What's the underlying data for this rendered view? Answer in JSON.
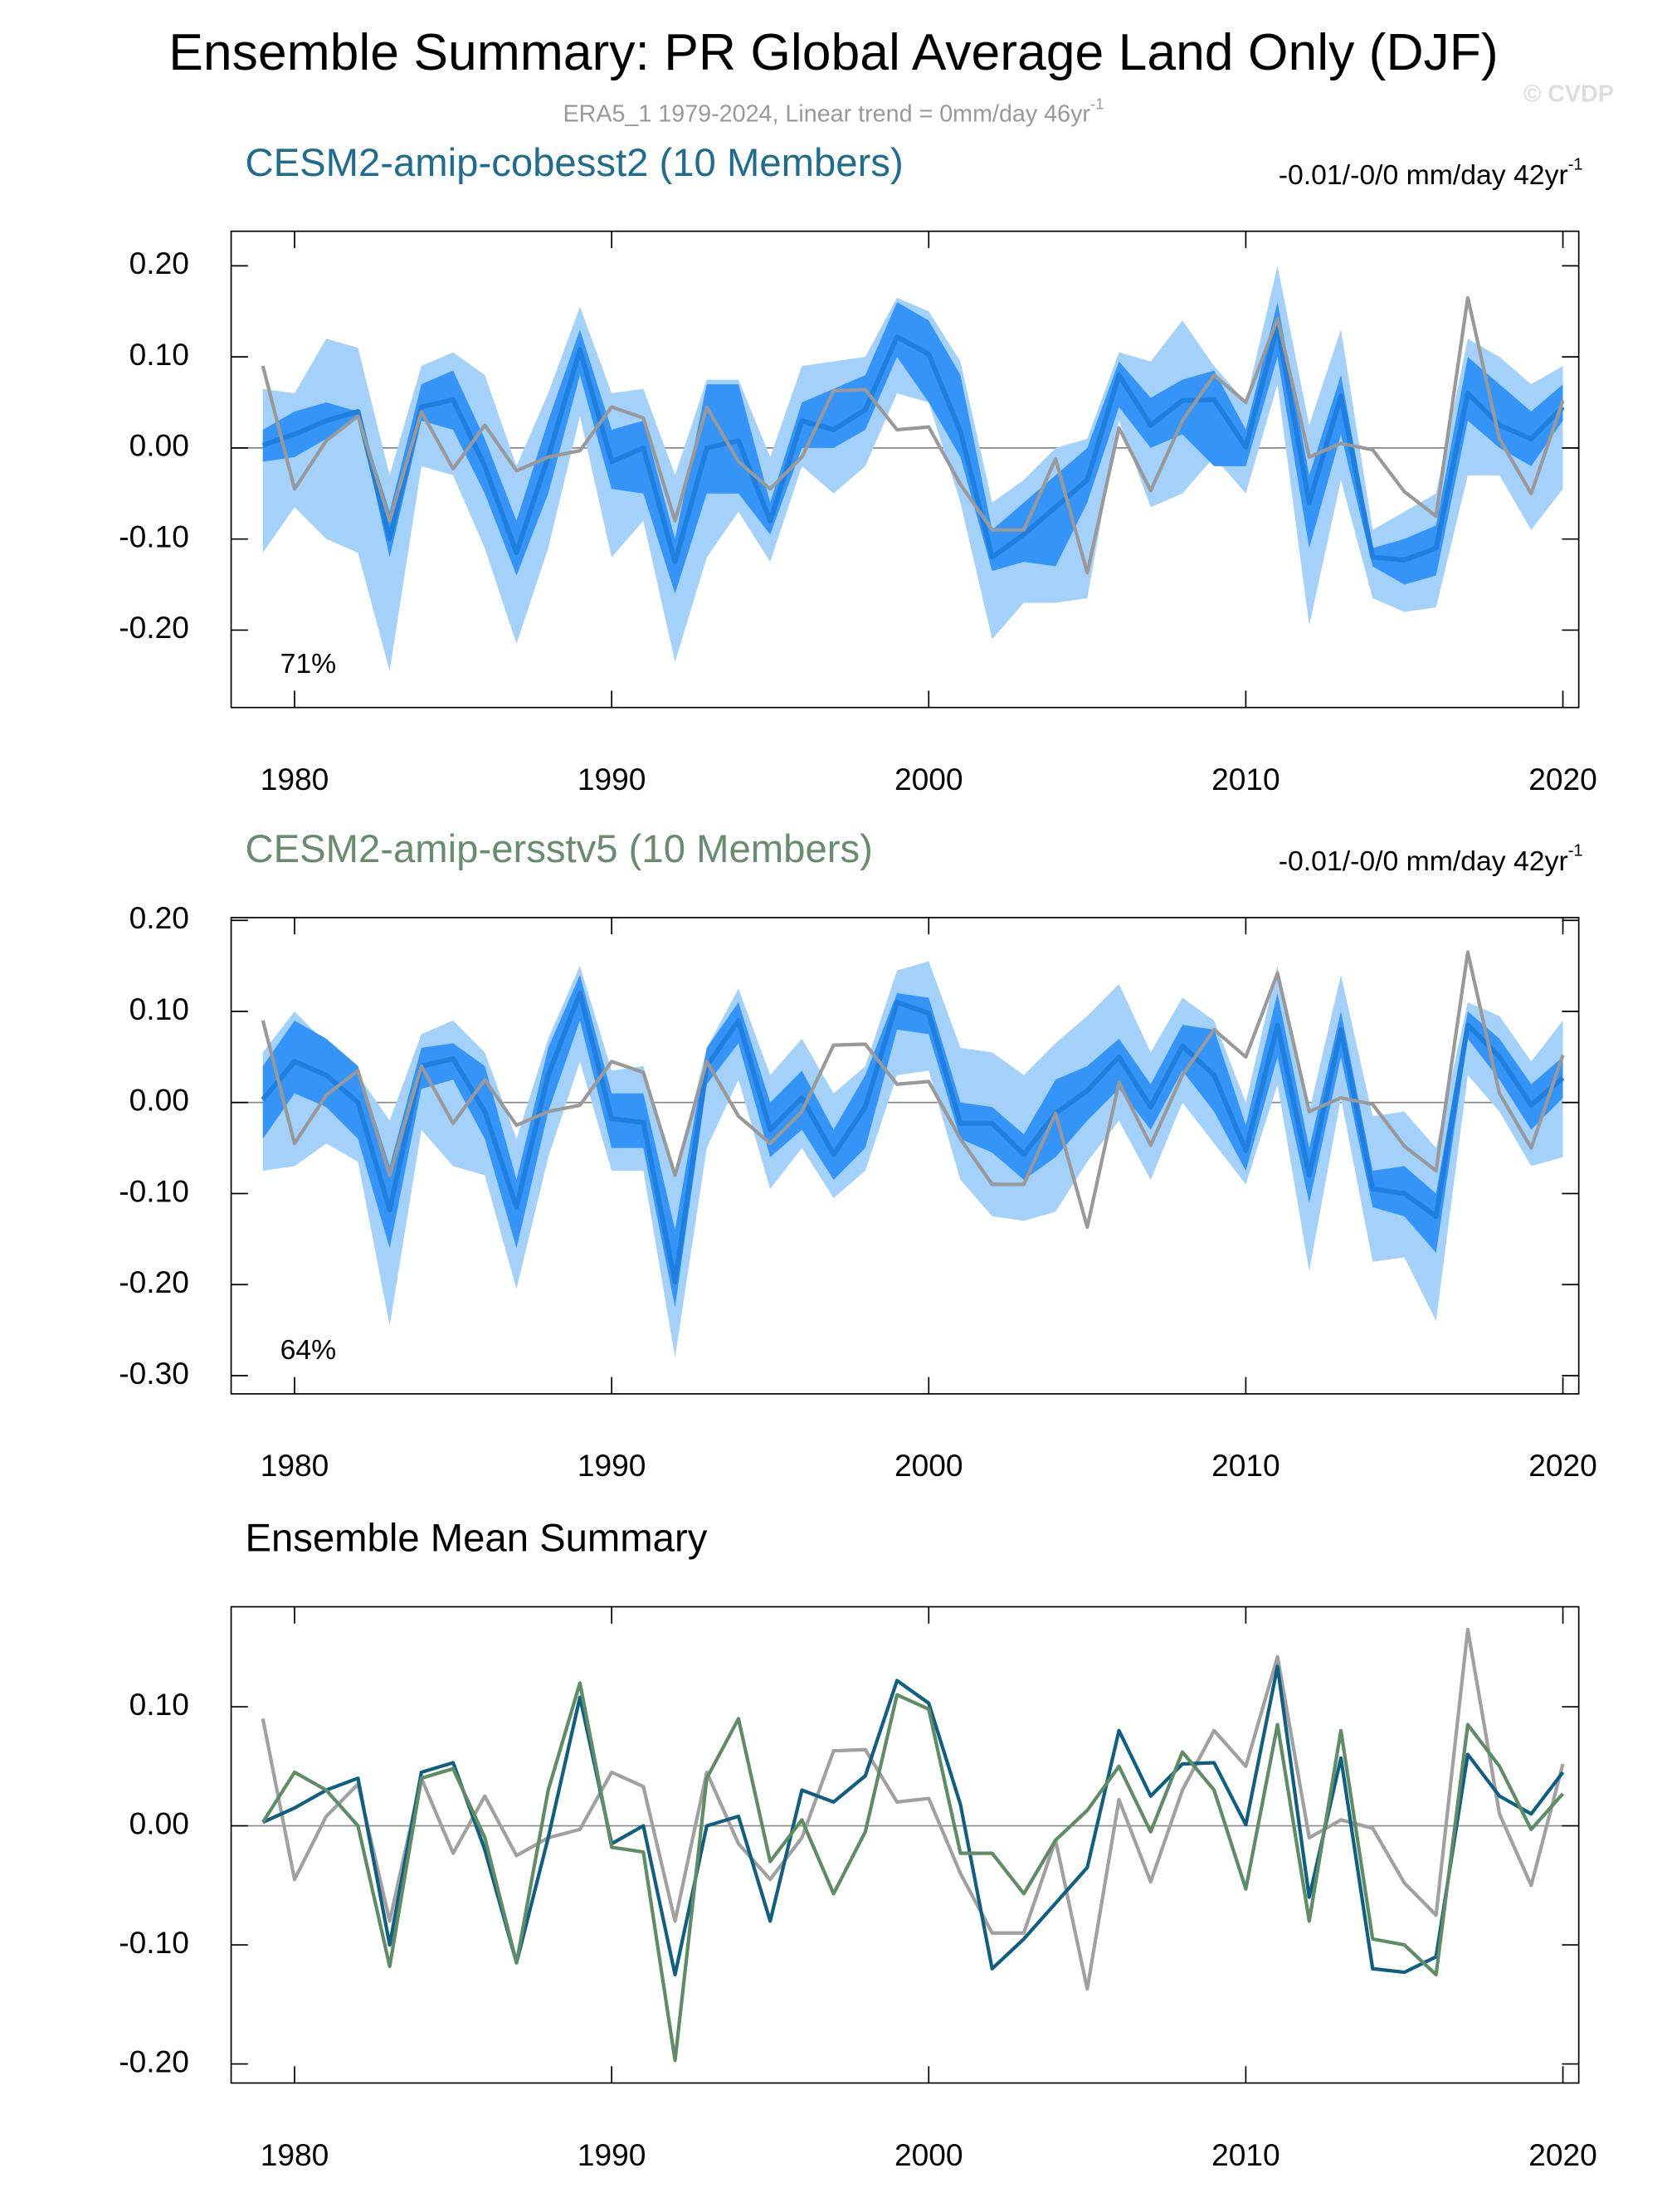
{
  "title": "Ensemble Summary: PR Global Average Land Only (DJF)",
  "subtitle": "ERA5_1 1979-2024, Linear trend = 0mm/day 46yr",
  "subtitle_superscript": "-1",
  "watermark": "© CVDP",
  "chart_data": [
    {
      "type": "band_line",
      "title": "CESM2-amip-cobesst2 (10 Members)",
      "title_color": "#1f6c91",
      "trend_label": "-0.01/-0/0 mm/day 42yr",
      "trend_superscript": "-1",
      "percent_label": "71%",
      "x": [
        1979,
        1980,
        1981,
        1982,
        1983,
        1984,
        1985,
        1986,
        1987,
        1988,
        1989,
        1990,
        1991,
        1992,
        1993,
        1994,
        1995,
        1996,
        1997,
        1998,
        1999,
        2000,
        2001,
        2002,
        2003,
        2004,
        2005,
        2006,
        2007,
        2008,
        2009,
        2010,
        2011,
        2012,
        2013,
        2014,
        2015,
        2016,
        2017,
        2018,
        2019,
        2020
      ],
      "xlim": [
        1978.0,
        2020.5
      ],
      "xticks": [
        1980,
        1990,
        2000,
        2010,
        2020
      ],
      "ylim": [
        -0.285,
        0.238
      ],
      "yticks": [
        {
          "value": 0.2,
          "label": "0.20"
        },
        {
          "value": 0.1,
          "label": "0.10"
        },
        {
          "value": 0,
          "label": "0.00"
        },
        {
          "value": -0.1,
          "label": "-0.10"
        },
        {
          "value": -0.2,
          "label": "-0.20"
        }
      ],
      "outer_band": {
        "color": "#a3d1fa",
        "high": [
          0.065,
          0.06,
          0.12,
          0.11,
          -0.03,
          0.09,
          0.105,
          0.08,
          -0.02,
          0.06,
          0.155,
          0.06,
          0.065,
          -0.03,
          0.075,
          0.075,
          -0.01,
          0.09,
          0.095,
          0.1,
          0.165,
          0.15,
          0.095,
          -0.06,
          -0.035,
          0.0,
          0.01,
          0.105,
          0.095,
          0.14,
          0.09,
          0.05,
          0.2,
          0.025,
          0.13,
          -0.09,
          -0.07,
          -0.05,
          0.12,
          0.1,
          0.07,
          0.09
        ],
        "low": [
          -0.115,
          -0.065,
          -0.1,
          -0.115,
          -0.245,
          -0.02,
          -0.03,
          -0.11,
          -0.215,
          -0.11,
          0.035,
          -0.12,
          -0.08,
          -0.235,
          -0.12,
          -0.07,
          -0.125,
          -0.02,
          -0.05,
          -0.02,
          0.06,
          0.05,
          -0.06,
          -0.21,
          -0.17,
          -0.17,
          -0.165,
          0.03,
          -0.065,
          -0.05,
          -0.01,
          -0.05,
          0.07,
          -0.195,
          -0.035,
          -0.165,
          -0.18,
          -0.175,
          -0.03,
          -0.03,
          -0.09,
          -0.045
        ]
      },
      "inner_band": {
        "color": "#3494f7",
        "high": [
          0.02,
          0.04,
          0.05,
          0.04,
          -0.07,
          0.07,
          0.085,
          0.01,
          -0.08,
          0.03,
          0.13,
          0.02,
          0.03,
          -0.1,
          0.07,
          0.07,
          -0.06,
          0.05,
          0.065,
          0.08,
          0.16,
          0.14,
          0.08,
          -0.09,
          -0.06,
          -0.03,
          0.0,
          0.095,
          0.055,
          0.075,
          0.085,
          0.02,
          0.16,
          -0.03,
          0.08,
          -0.11,
          -0.1,
          -0.085,
          0.1,
          0.07,
          0.04,
          0.07
        ],
        "low": [
          -0.015,
          -0.01,
          0.01,
          0.035,
          -0.12,
          0.03,
          0.02,
          -0.05,
          -0.14,
          -0.05,
          0.08,
          -0.045,
          -0.05,
          -0.16,
          -0.05,
          -0.05,
          -0.095,
          0.0,
          0.0,
          0.02,
          0.1,
          0.05,
          -0.01,
          -0.135,
          -0.125,
          -0.13,
          -0.06,
          0.045,
          0.0,
          0.015,
          -0.02,
          -0.02,
          0.1,
          -0.11,
          0.015,
          -0.13,
          -0.15,
          -0.14,
          0.03,
          0.0,
          -0.02,
          0.03
        ]
      },
      "ensemble_mean": {
        "color": "#1e7fdf",
        "values": [
          0.003,
          0.015,
          0.03,
          0.04,
          -0.1,
          0.045,
          0.053,
          -0.02,
          -0.115,
          -0.01,
          0.108,
          -0.015,
          0.0,
          -0.125,
          0.0,
          0.008,
          -0.08,
          0.03,
          0.02,
          0.042,
          0.122,
          0.103,
          0.018,
          -0.12,
          -0.095,
          -0.065,
          -0.035,
          0.08,
          0.025,
          0.052,
          0.053,
          0.001,
          0.134,
          -0.06,
          0.057,
          -0.12,
          -0.123,
          -0.11,
          0.06,
          0.025,
          0.01,
          0.045
        ]
      },
      "observations": {
        "color": "#999999",
        "values": [
          0.09,
          -0.045,
          0.008,
          0.035,
          -0.08,
          0.04,
          -0.023,
          0.025,
          -0.025,
          -0.01,
          -0.003,
          0.045,
          0.033,
          -0.08,
          0.045,
          -0.015,
          -0.045,
          -0.01,
          0.063,
          0.064,
          0.02,
          0.023,
          -0.04,
          -0.09,
          -0.09,
          -0.012,
          -0.137,
          0.022,
          -0.047,
          0.03,
          0.08,
          0.05,
          0.142,
          -0.01,
          0.005,
          -0.002,
          -0.048,
          -0.075,
          0.165,
          0.01,
          -0.05,
          0.052
        ]
      }
    },
    {
      "type": "band_line",
      "title": "CESM2-amip-ersstv5 (10 Members)",
      "title_color": "#6a8c6e",
      "trend_label": "-0.01/-0/0 mm/day 42yr",
      "trend_superscript": "-1",
      "percent_label": "64%",
      "x": [
        1979,
        1980,
        1981,
        1982,
        1983,
        1984,
        1985,
        1986,
        1987,
        1988,
        1989,
        1990,
        1991,
        1992,
        1993,
        1994,
        1995,
        1996,
        1997,
        1998,
        1999,
        2000,
        2001,
        2002,
        2003,
        2004,
        2005,
        2006,
        2007,
        2008,
        2009,
        2010,
        2011,
        2012,
        2013,
        2014,
        2015,
        2016,
        2017,
        2018,
        2019,
        2020
      ],
      "xlim": [
        1978.0,
        2020.5
      ],
      "xticks": [
        1980,
        1990,
        2000,
        2010,
        2020
      ],
      "ylim": [
        -0.32,
        0.203
      ],
      "yticks": [
        {
          "value": 0.2,
          "label": "0.20"
        },
        {
          "value": 0.1,
          "label": "0.10"
        },
        {
          "value": 0,
          "label": "0.00"
        },
        {
          "value": -0.1,
          "label": "-0.10"
        },
        {
          "value": -0.2,
          "label": "-0.20"
        },
        {
          "value": -0.3,
          "label": "-0.30"
        }
      ],
      "outer_band": {
        "color": "#a3d1fa",
        "high": [
          0.055,
          0.1,
          0.065,
          0.03,
          -0.02,
          0.075,
          0.09,
          0.055,
          -0.04,
          0.07,
          0.15,
          0.035,
          0.04,
          -0.08,
          0.06,
          0.125,
          0.03,
          0.07,
          0.01,
          0.04,
          0.145,
          0.155,
          0.06,
          0.055,
          0.03,
          0.065,
          0.095,
          0.13,
          0.055,
          0.115,
          0.09,
          0.0,
          0.15,
          -0.01,
          0.14,
          -0.015,
          -0.01,
          -0.05,
          0.11,
          0.095,
          0.045,
          0.09
        ],
        "low": [
          -0.075,
          -0.07,
          -0.045,
          -0.065,
          -0.245,
          -0.03,
          -0.07,
          -0.08,
          -0.205,
          -0.06,
          0.045,
          -0.075,
          -0.075,
          -0.28,
          -0.05,
          0.025,
          -0.095,
          -0.05,
          -0.105,
          -0.075,
          0.03,
          0.035,
          -0.085,
          -0.125,
          -0.13,
          -0.12,
          -0.065,
          -0.02,
          -0.085,
          0.0,
          -0.045,
          -0.09,
          0.02,
          -0.185,
          0.005,
          -0.175,
          -0.17,
          -0.24,
          0.03,
          -0.01,
          -0.07,
          -0.06
        ]
      },
      "inner_band": {
        "color": "#3494f7",
        "high": [
          0.04,
          0.09,
          0.07,
          0.04,
          -0.07,
          0.06,
          0.065,
          0.04,
          -0.085,
          0.06,
          0.14,
          0.01,
          0.01,
          -0.14,
          0.06,
          0.11,
          0.0,
          0.035,
          -0.03,
          0.03,
          0.12,
          0.115,
          0.0,
          -0.005,
          -0.035,
          0.025,
          0.04,
          0.07,
          0.02,
          0.085,
          0.08,
          -0.025,
          0.12,
          -0.05,
          0.1,
          -0.075,
          -0.07,
          -0.1,
          0.1,
          0.07,
          0.02,
          0.05
        ],
        "low": [
          -0.04,
          0.01,
          -0.005,
          -0.04,
          -0.16,
          0.015,
          0.025,
          -0.04,
          -0.16,
          -0.01,
          0.09,
          -0.05,
          -0.05,
          -0.225,
          0.02,
          0.065,
          -0.06,
          -0.03,
          -0.085,
          -0.05,
          0.08,
          0.075,
          -0.04,
          -0.055,
          -0.085,
          -0.06,
          -0.02,
          0.015,
          -0.03,
          0.035,
          -0.01,
          -0.075,
          0.05,
          -0.11,
          0.05,
          -0.115,
          -0.125,
          -0.165,
          0.07,
          0.025,
          -0.03,
          0.005
        ]
      },
      "ensemble_mean": {
        "color": "#1e7fdf",
        "values": [
          0.003,
          0.045,
          0.03,
          0.0,
          -0.118,
          0.04,
          0.048,
          -0.01,
          -0.115,
          0.03,
          0.12,
          -0.018,
          -0.022,
          -0.197,
          0.04,
          0.09,
          -0.03,
          0.005,
          -0.057,
          -0.005,
          0.11,
          0.098,
          -0.023,
          -0.023,
          -0.057,
          -0.012,
          0.013,
          0.05,
          -0.005,
          0.062,
          0.03,
          -0.053,
          0.085,
          -0.08,
          0.08,
          -0.095,
          -0.1,
          -0.125,
          0.085,
          0.05,
          -0.003,
          0.027
        ]
      }
    },
    {
      "type": "line",
      "title": "Ensemble Mean Summary",
      "title_color": "#000000",
      "x": [
        1979,
        1980,
        1981,
        1982,
        1983,
        1984,
        1985,
        1986,
        1987,
        1988,
        1989,
        1990,
        1991,
        1992,
        1993,
        1994,
        1995,
        1996,
        1997,
        1998,
        1999,
        2000,
        2001,
        2002,
        2003,
        2004,
        2005,
        2006,
        2007,
        2008,
        2009,
        2010,
        2011,
        2012,
        2013,
        2014,
        2015,
        2016,
        2017,
        2018,
        2019,
        2020
      ],
      "xlim": [
        1978.0,
        2020.5
      ],
      "xticks": [
        1980,
        1990,
        2000,
        2010,
        2020
      ],
      "ylim": [
        -0.216,
        0.184
      ],
      "yticks": [
        {
          "value": 0.1,
          "label": "0.10"
        },
        {
          "value": 0,
          "label": "0.00"
        },
        {
          "value": -0.1,
          "label": "-0.10"
        },
        {
          "value": -0.2,
          "label": "-0.20"
        }
      ],
      "colors": [
        "#a0a0a0",
        "#0e5f82",
        "#5e8c64"
      ]
    }
  ]
}
